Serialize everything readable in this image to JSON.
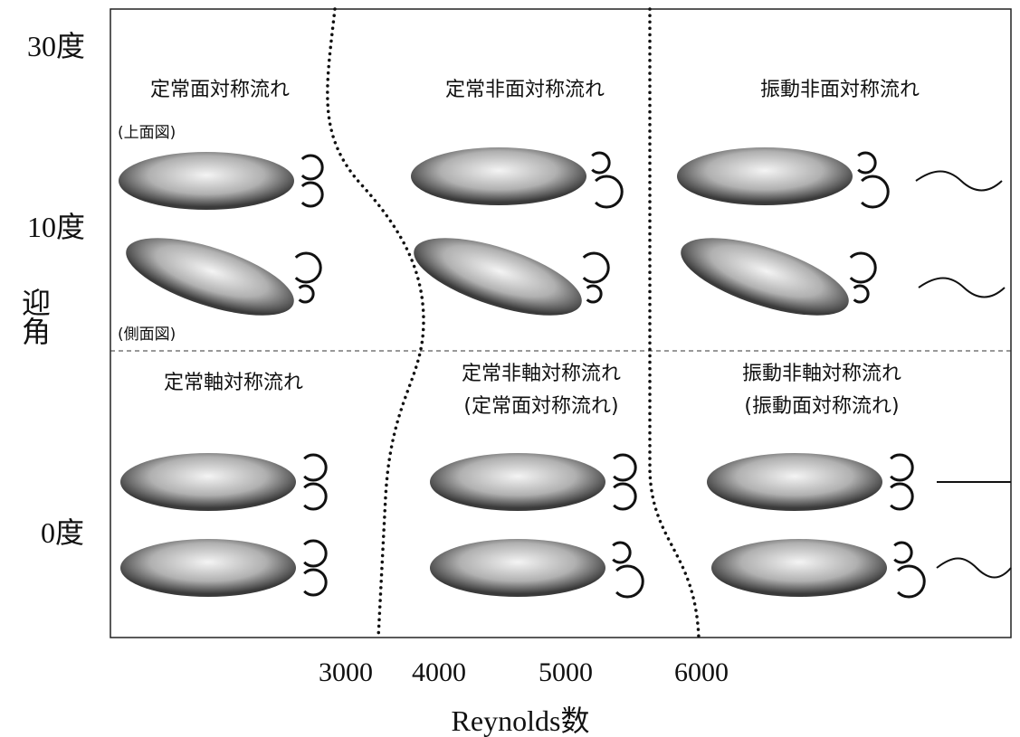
{
  "y_axis": {
    "title": "迎角",
    "labels": [
      "30度",
      "10度",
      "0度"
    ]
  },
  "x_axis": {
    "title": "Reynolds数",
    "labels": [
      "3000",
      "4000",
      "5000",
      "6000"
    ]
  },
  "views": [
    "(上面図)",
    "(側面図)"
  ],
  "regions": [
    {
      "lines": [
        "定常面対称流れ"
      ]
    },
    {
      "lines": [
        "定常非面対称流れ"
      ]
    },
    {
      "lines": [
        "振動非面対称流れ"
      ]
    },
    {
      "lines": [
        "定常軸対称流れ"
      ]
    },
    {
      "lines": [
        "定常非軸対称流れ",
        "(定常面対称流れ)"
      ]
    },
    {
      "lines": [
        "振動非軸対称流れ",
        "(振動面対称流れ)"
      ]
    }
  ]
}
